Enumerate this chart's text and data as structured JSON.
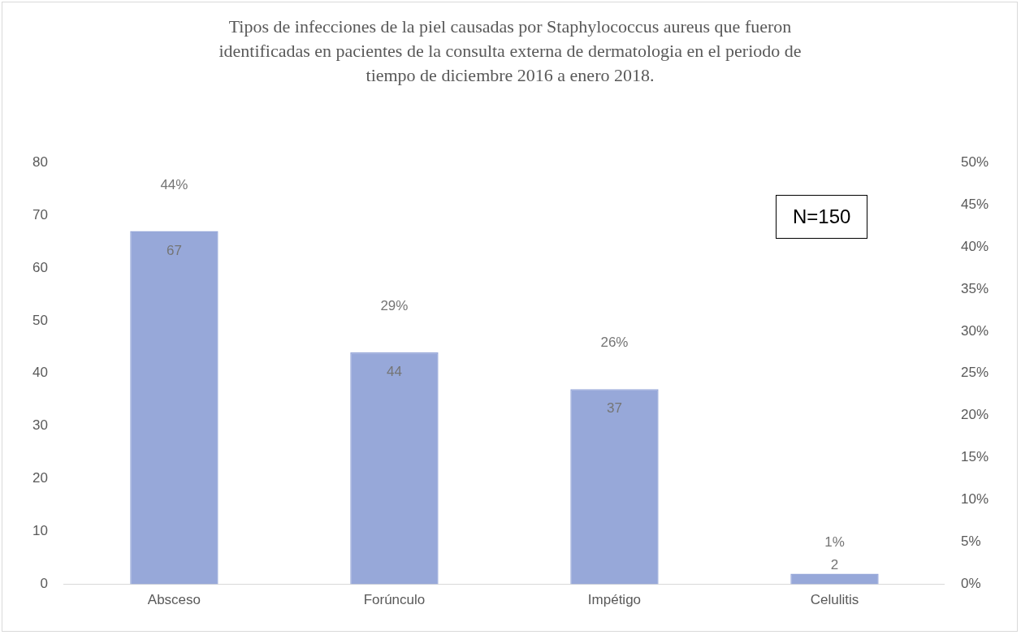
{
  "chart_data": {
    "type": "bar",
    "title": "Tipos de infecciones de la piel causadas por Staphylococcus aureus  que fueron identificadas en pacientes de la consulta externa de dermatologia en el periodo de tiempo de diciembre 2016 a enero 2018.",
    "categories": [
      "Absceso",
      "Forúnculo",
      "Impétigo",
      "Celulitis"
    ],
    "series": [
      {
        "color": "#97a8d9",
        "values": [
          67,
          44,
          37,
          2
        ],
        "value_labels": [
          "67",
          "44",
          "37",
          "2"
        ]
      }
    ],
    "ylim": [
      0,
      80
    ],
    "yticks": [
      0,
      10,
      20,
      30,
      40,
      50,
      60,
      70,
      80
    ],
    "y2lim": [
      0,
      50
    ],
    "y2ticks": [
      {
        "value": 0,
        "label": "0%"
      },
      {
        "value": 5,
        "label": "5%"
      },
      {
        "value": 10,
        "label": "10%"
      },
      {
        "value": 15,
        "label": "15%"
      },
      {
        "value": 20,
        "label": "20%"
      },
      {
        "value": 25,
        "label": "25%"
      },
      {
        "value": 30,
        "label": "30%"
      },
      {
        "value": 35,
        "label": "35%"
      },
      {
        "value": 40,
        "label": "40%"
      },
      {
        "value": 45,
        "label": "45%"
      },
      {
        "value": 50,
        "label": "50%"
      }
    ],
    "annotations": [
      "N=150",
      {
        "text": "44%",
        "x": "Absceso",
        "y": 67
      },
      {
        "text": "29%",
        "x": "Forúnculo",
        "y": 44
      },
      {
        "text": "26%",
        "x": "Impétigo",
        "y": 37
      },
      {
        "text": "1%",
        "x": "Celulitis",
        "y": 2
      }
    ],
    "grid": false,
    "legend": false
  }
}
